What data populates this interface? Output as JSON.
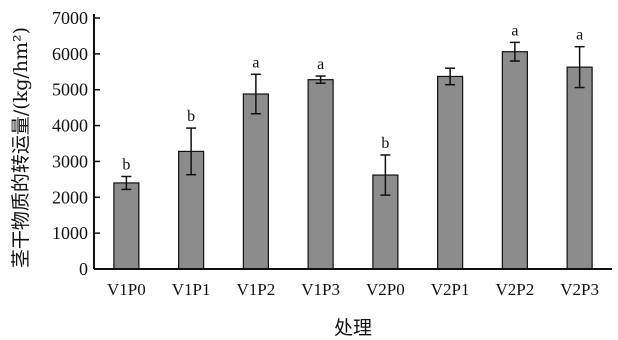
{
  "chart_data": {
    "type": "bar",
    "xlabel": "处理",
    "ylabel": "茎干物质的转运量/(kg/hm²)",
    "ylim": [
      0,
      7000
    ],
    "yticks": [
      0,
      1000,
      2000,
      3000,
      4000,
      5000,
      6000,
      7000
    ],
    "categories": [
      "V1P0",
      "V1P1",
      "V1P2",
      "V1P3",
      "V2P0",
      "V2P1",
      "V2P2",
      "V2P3"
    ],
    "values": [
      2400,
      3280,
      4880,
      5280,
      2620,
      5370,
      6060,
      5630
    ],
    "errors": [
      180,
      650,
      550,
      100,
      560,
      230,
      260,
      570
    ],
    "significance": [
      "b",
      "b",
      "a",
      "a",
      "b",
      "",
      "a",
      "a"
    ],
    "bar_color": "#8c8c8c"
  }
}
